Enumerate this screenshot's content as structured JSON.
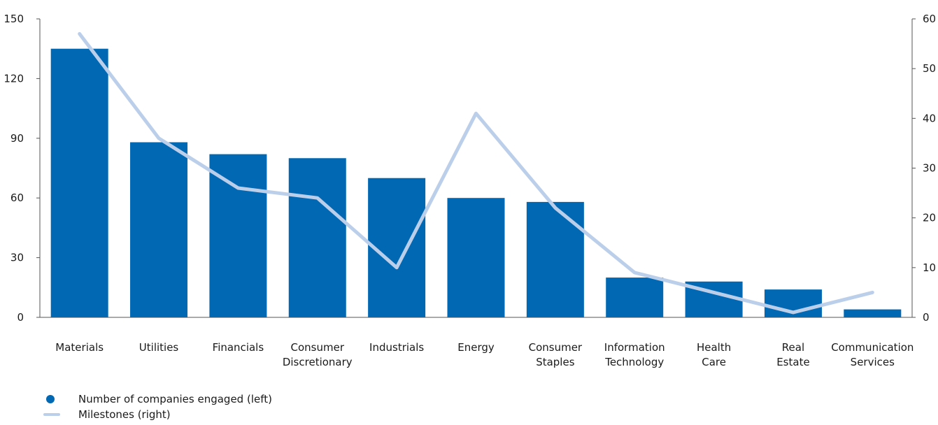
{
  "chart_data": {
    "type": "bar",
    "categories": [
      [
        "Materials"
      ],
      [
        "Utilities"
      ],
      [
        "Financials"
      ],
      [
        "Consumer",
        "Discretionary"
      ],
      [
        "Industrials"
      ],
      [
        "Energy"
      ],
      [
        "Consumer",
        "Staples"
      ],
      [
        "Information",
        "Technology"
      ],
      [
        "Health",
        "Care"
      ],
      [
        "Real",
        "Estate"
      ],
      [
        "Communication",
        "Services"
      ]
    ],
    "series": [
      {
        "name": "Number of companies engaged (left)",
        "type": "bar",
        "axis": "left",
        "color": "#0168b3",
        "values": [
          135,
          88,
          82,
          80,
          70,
          60,
          58,
          20,
          18,
          14,
          4
        ]
      },
      {
        "name": "Milestones (right)",
        "type": "line",
        "axis": "right",
        "color": "#bccfea",
        "values": [
          57,
          36,
          26,
          24,
          10,
          41,
          22,
          9,
          5,
          1,
          5
        ]
      }
    ],
    "y_left": {
      "min": 0,
      "max": 150,
      "ticks": [
        0,
        30,
        60,
        90,
        120,
        150
      ]
    },
    "y_right": {
      "min": 0,
      "max": 60,
      "ticks": [
        0,
        10,
        20,
        30,
        40,
        50,
        60
      ]
    },
    "grid": false,
    "legend_position": "bottom-left"
  }
}
